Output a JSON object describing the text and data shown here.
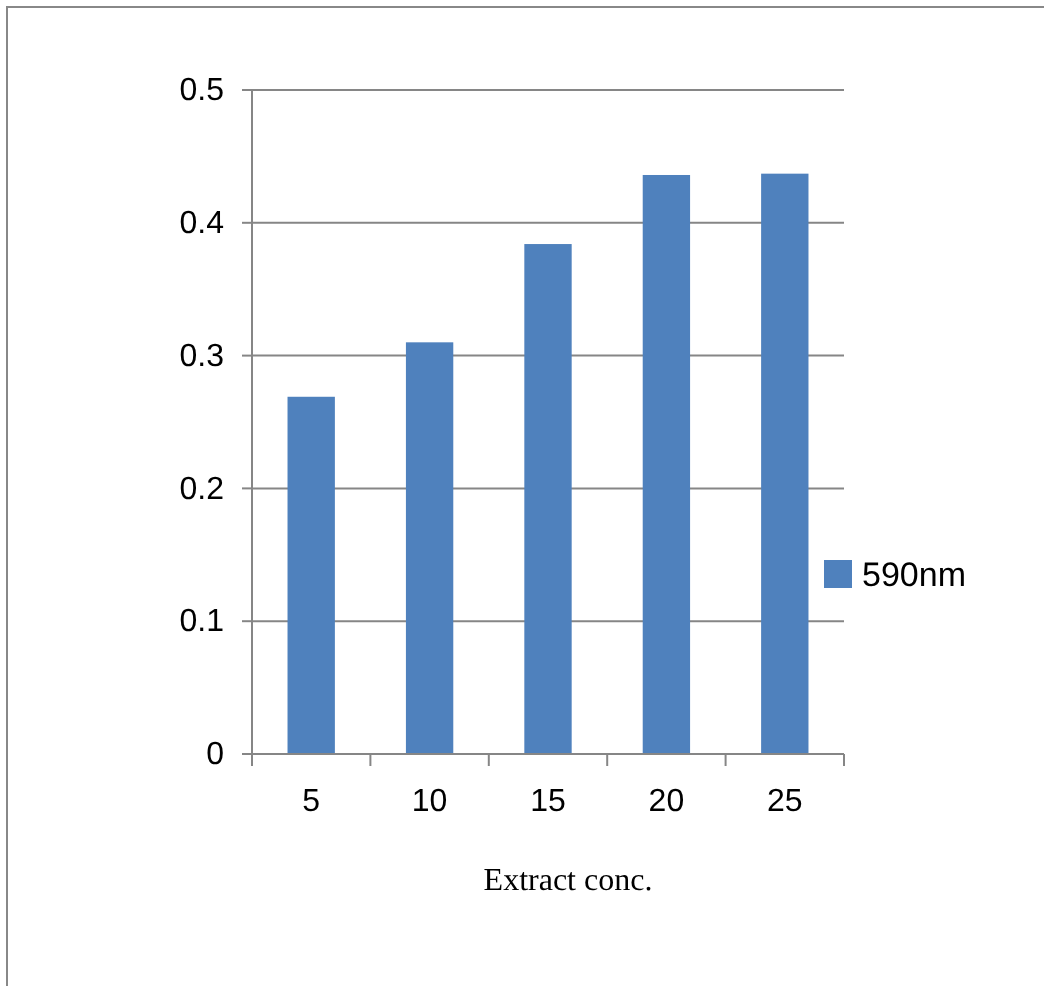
{
  "chart_data": {
    "type": "bar",
    "xlabel": "Extract conc.",
    "categories": [
      "5",
      "10",
      "15",
      "20",
      "25"
    ],
    "series": [
      {
        "name": "590nm",
        "color": "#4f81bd",
        "values": [
          0.269,
          0.31,
          0.384,
          0.436,
          0.437
        ]
      }
    ],
    "ylim": [
      0,
      0.5
    ],
    "yticks": [
      0,
      0.1,
      0.2,
      0.3,
      0.4,
      0.5
    ],
    "grid": "y",
    "legend": "right"
  }
}
